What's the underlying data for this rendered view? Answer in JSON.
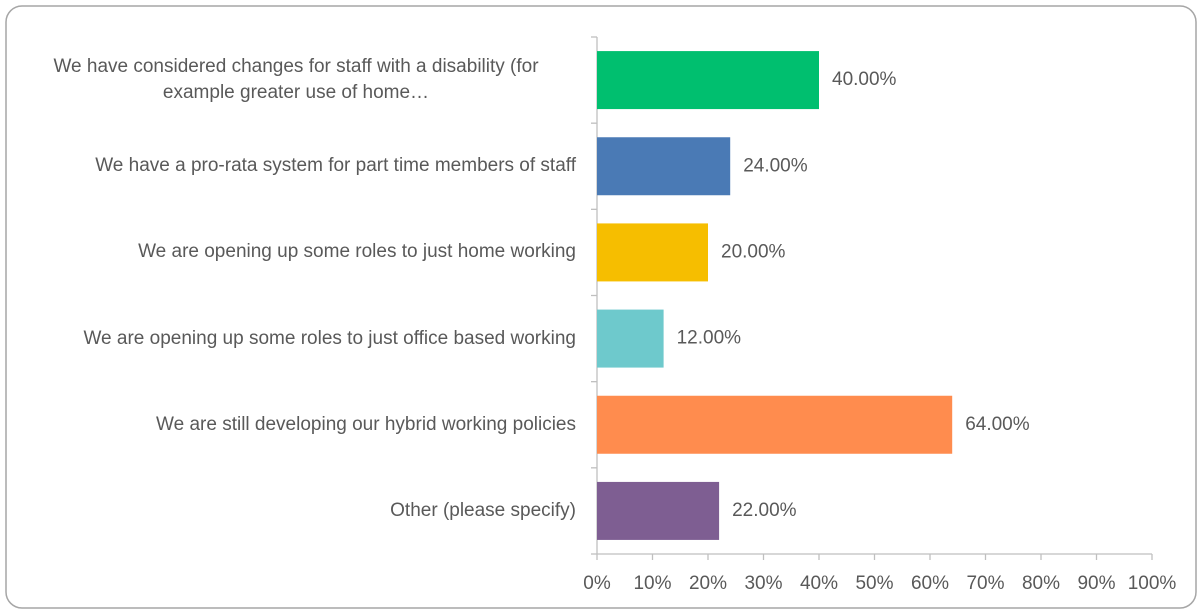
{
  "chart_data": {
    "type": "barh",
    "categories": [
      "We have considered changes for staff with a disability (for example greater use of  home…",
      "We have a pro-rata system for part time members of staff",
      "We are opening up some roles to just home working",
      "We are opening up some roles to just office based working",
      "We are still developing our hybrid working policies",
      "Other (please specify)"
    ],
    "values": [
      40,
      24,
      20,
      12,
      64,
      22
    ],
    "value_labels": [
      "40.00%",
      "24.00%",
      "20.00%",
      "12.00%",
      "64.00%",
      "22.00%"
    ],
    "colors": [
      "#00bf6f",
      "#4a7ab5",
      "#f6be00",
      "#6ec9cc",
      "#ff8c4e",
      "#7e5e92"
    ],
    "xlim": [
      0,
      100
    ],
    "xticks": [
      {
        "value": 0,
        "label": "0%"
      },
      {
        "value": 10,
        "label": "10%"
      },
      {
        "value": 20,
        "label": "20%"
      },
      {
        "value": 30,
        "label": "30%"
      },
      {
        "value": 40,
        "label": "40%"
      },
      {
        "value": 50,
        "label": "50%"
      },
      {
        "value": 60,
        "label": "60%"
      },
      {
        "value": 70,
        "label": "70%"
      },
      {
        "value": 80,
        "label": "80%"
      },
      {
        "value": 90,
        "label": "90%"
      },
      {
        "value": 100,
        "label": "100%"
      }
    ]
  }
}
